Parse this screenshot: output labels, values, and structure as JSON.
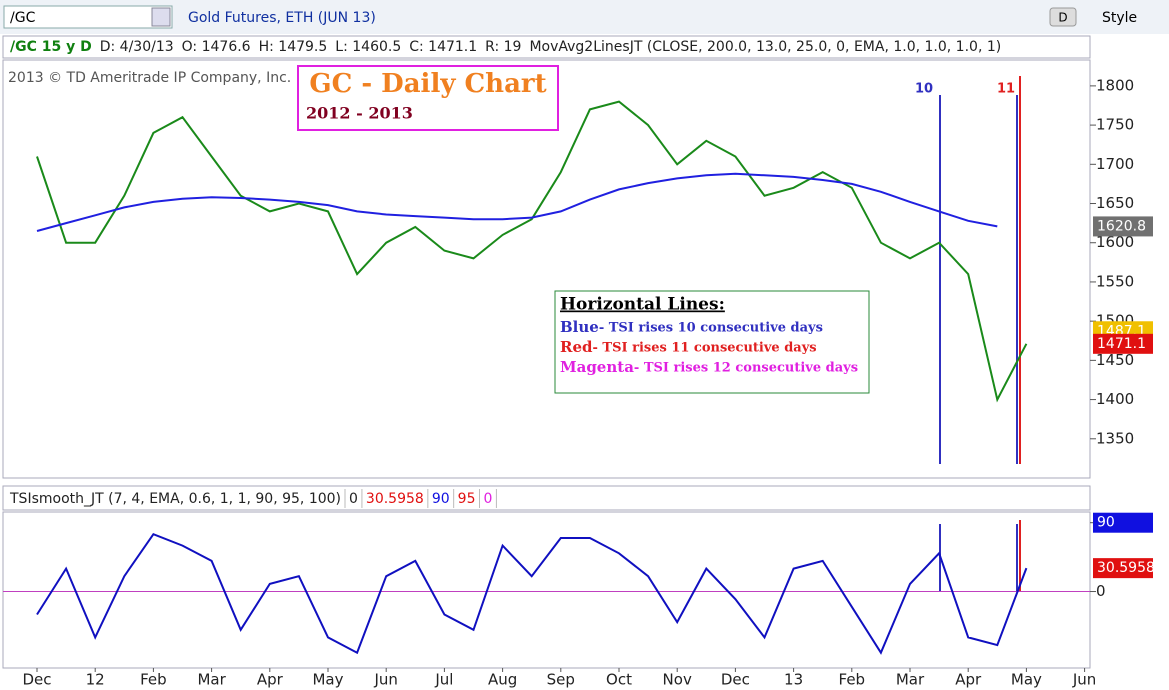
{
  "header": {
    "symbol": "/GC",
    "description": "Gold Futures, ETH (JUN 13)",
    "period_button": "D",
    "style_button": "Style",
    "info": [
      "/GC 15 y D",
      "D: 4/30/13",
      "O: 1476.6",
      "H: 1479.5",
      "L: 1460.5",
      "C: 1471.1",
      "R: 19",
      "MovAvg2LinesJT (CLOSE, 200.0, 13.0, 25.0, 0, EMA, 1.0, 1.0, 1.0, 1)"
    ]
  },
  "copyright": "2013 © TD Ameritrade IP Company, Inc.",
  "title_box": {
    "title": "GC - Daily Chart",
    "subtitle": "2012 - 2013"
  },
  "markers": [
    {
      "text": "10",
      "color": "#3030c0"
    },
    {
      "text": "11",
      "color": "#e02020"
    }
  ],
  "legend_box": {
    "title": "Horizontal Lines:",
    "items": [
      {
        "name": "Blue",
        "text": " - TSI rises 10 consecutive days",
        "color": "#3030c0"
      },
      {
        "name": "Red",
        "text": " - TSI rises 11 consecutive days",
        "color": "#e02020"
      },
      {
        "name": "Magenta",
        "text": " - TSI rises 12 consecutive days",
        "color": "#e020e0"
      }
    ]
  },
  "tsi_header": [
    "TSIsmooth_JT (7, 4, EMA, 0.6, 1, 1, 90, 95, 100)",
    "0",
    "30.5958",
    "90",
    "95",
    "0"
  ],
  "chart_data": [
    {
      "type": "line",
      "categories": [
        "Dec",
        null,
        "12",
        null,
        "Feb",
        null,
        "Mar",
        null,
        "Apr",
        null,
        "May",
        null,
        "Jun",
        null,
        "Jul",
        null,
        "Aug",
        null,
        "Sep",
        null,
        "Oct",
        null,
        "Nov",
        null,
        "Dec",
        null,
        "13",
        null,
        "Feb",
        null,
        "Mar",
        null,
        "Apr",
        null,
        "May",
        null,
        "Jun",
        null
      ],
      "series": [
        {
          "color": "#1a8a1a",
          "values": [
            1710,
            1600,
            1600,
            1660,
            1740,
            1760,
            1710,
            1660,
            1640,
            1650,
            1640,
            1560,
            1600,
            1620,
            1590,
            1580,
            1610,
            1630,
            1690,
            1770,
            1780,
            1750,
            1700,
            1730,
            1710,
            1660,
            1670,
            1690,
            1670,
            1600,
            1580,
            1600,
            1560,
            1400,
            1471.1,
            null,
            null,
            null
          ]
        },
        {
          "color": "#2020e0",
          "values": [
            1615,
            1625,
            1635,
            1645,
            1652,
            1656,
            1658,
            1657,
            1655,
            1652,
            1648,
            1640,
            1636,
            1634,
            1632,
            1630,
            1630,
            1632,
            1640,
            1655,
            1668,
            1676,
            1682,
            1686,
            1688,
            1686,
            1684,
            1680,
            1675,
            1665,
            1652,
            1640,
            1628,
            1620.8,
            null,
            null,
            null,
            null
          ]
        }
      ],
      "ylim": [
        1300,
        1833
      ],
      "yticks": [
        1350,
        1400,
        1450,
        1500,
        1550,
        1600,
        1650,
        1700,
        1750,
        1800
      ],
      "price_tags": [
        {
          "value": 1620.8,
          "color": "#707070"
        },
        {
          "value": 1487.1,
          "color": "#f0c000"
        },
        {
          "value": 1471.1,
          "color": "#e01010"
        }
      ]
    },
    {
      "type": "line",
      "series": [
        {
          "color": "#1010c0",
          "values": [
            -30,
            30,
            -60,
            20,
            75,
            60,
            40,
            -50,
            10,
            20,
            -60,
            -80,
            20,
            40,
            -30,
            -50,
            60,
            20,
            70,
            70,
            50,
            20,
            -40,
            30,
            -10,
            -60,
            30,
            40,
            -20,
            -80,
            10,
            50,
            -60,
            -70,
            30.5958,
            null,
            null,
            null
          ]
        }
      ],
      "ylim": [
        -100,
        104
      ],
      "yticks": [
        90,
        0
      ],
      "zero_line_color": "#c040c0",
      "price_tags": [
        {
          "value": 90,
          "color": "#1010e0"
        },
        {
          "value": 30.5958,
          "color": "#e01010"
        }
      ]
    }
  ]
}
